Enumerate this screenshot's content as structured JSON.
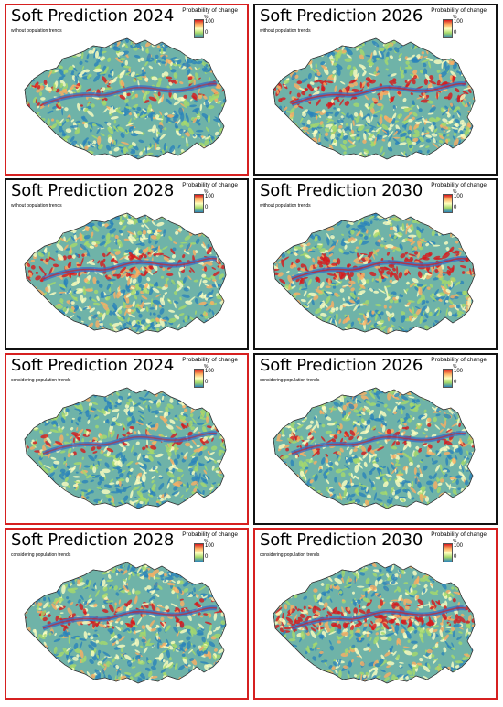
{
  "panels": [
    {
      "title": "Soft Prediction 2024",
      "subtitle": "without population trends",
      "border_color": "#d62020",
      "intensity": 0.35
    },
    {
      "title": "Soft Prediction 2026",
      "subtitle": "without population trends",
      "border_color": "#111111",
      "intensity": 0.6
    },
    {
      "title": "Soft Prediction 2028",
      "subtitle": "without population trends",
      "border_color": "#111111",
      "intensity": 0.55
    },
    {
      "title": "Soft Prediction 2030",
      "subtitle": "without population trends",
      "border_color": "#111111",
      "intensity": 0.65
    },
    {
      "title": "Soft Prediction 2024",
      "subtitle": "considering population trends",
      "border_color": "#d62020",
      "intensity": 0.35
    },
    {
      "title": "Soft Prediction 2026",
      "subtitle": "considering population trends",
      "border_color": "#111111",
      "intensity": 0.45
    },
    {
      "title": "Soft Prediction 2028",
      "subtitle": "considering population trends",
      "border_color": "#d62020",
      "intensity": 0.5
    },
    {
      "title": "Soft Prediction 2030",
      "subtitle": "considering population trends",
      "border_color": "#d62020",
      "intensity": 0.55
    }
  ],
  "legend": {
    "title": "Probability of change",
    "unit": "%",
    "max": "100",
    "min": "0"
  },
  "colors": {
    "high": "#d7191c",
    "mid_high": "#fdae61",
    "mid": "#ffffbf",
    "mid_low": "#a6d96a",
    "low": "#2b83ba",
    "valley": "#3a6fc4"
  }
}
